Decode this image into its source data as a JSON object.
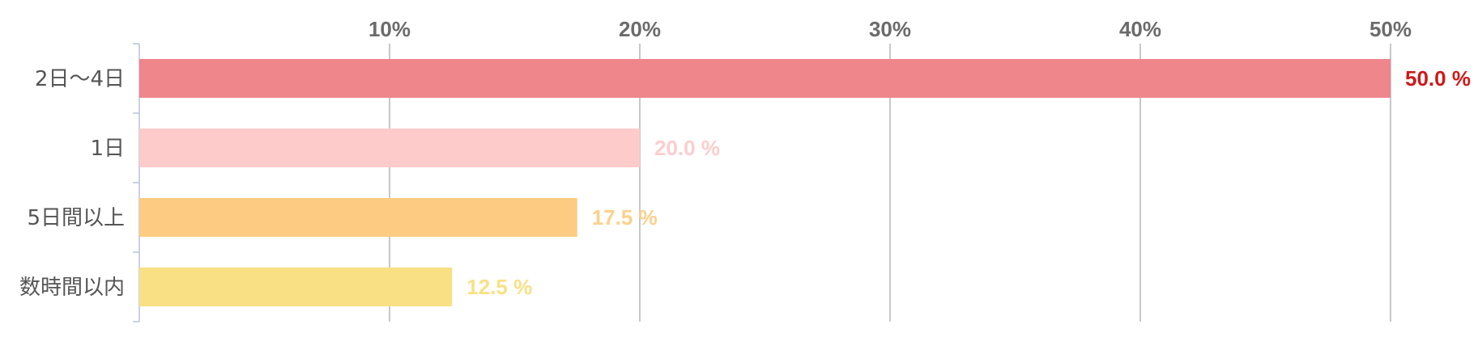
{
  "chart_data": {
    "type": "bar",
    "orientation": "horizontal",
    "title": "",
    "xlabel": "",
    "ylabel": "",
    "xlim": [
      0,
      50
    ],
    "x_ticks": [
      10,
      20,
      30,
      40,
      50
    ],
    "x_tick_labels": [
      "10%",
      "20%",
      "30%",
      "40%",
      "50%"
    ],
    "x_axis_position": "top",
    "grid": true,
    "legend": "none",
    "categories": [
      "2日〜4日",
      "1日",
      "5日間以上",
      "数時間以内"
    ],
    "values": [
      50.0,
      20.0,
      17.5,
      12.5
    ],
    "value_labels": [
      "50.0 %",
      "20.0 %",
      "17.5 %",
      "12.5 %"
    ],
    "bar_colors": [
      "#ee868c",
      "#fecbcb",
      "#fdcc82",
      "#f9e084"
    ],
    "label_colors": [
      "#cc1a1a",
      "#fdcdcd",
      "#fdd08a",
      "#f9e084"
    ]
  }
}
